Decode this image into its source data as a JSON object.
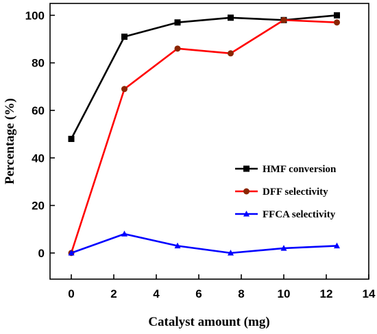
{
  "chart_data": {
    "type": "line",
    "xlabel": "Catalyst amount (mg)",
    "ylabel": "Percentage (%)",
    "xlim": [
      -1,
      14
    ],
    "ylim": [
      -11,
      105
    ],
    "xticks": [
      0,
      2,
      4,
      6,
      8,
      10,
      12,
      14
    ],
    "yticks": [
      0,
      20,
      40,
      60,
      80,
      100
    ],
    "grid": false,
    "legend_position": "right-middle",
    "series": [
      {
        "name": "HMF conversion",
        "color": "#000000",
        "marker": "square",
        "x": [
          0,
          2.5,
          5,
          7.5,
          10,
          12.5
        ],
        "y": [
          48,
          91,
          97,
          99,
          98,
          100
        ]
      },
      {
        "name": "DFF selectivity",
        "color": "#ff0000",
        "marker": "circle",
        "marker_color": "#8b2500",
        "x": [
          0,
          2.5,
          5,
          7.5,
          10,
          12.5
        ],
        "y": [
          0,
          69,
          86,
          84,
          98,
          97
        ]
      },
      {
        "name": "FFCA selectivity",
        "color": "#0000ff",
        "marker": "triangle",
        "x": [
          0,
          2.5,
          5,
          7.5,
          10,
          12.5
        ],
        "y": [
          0,
          8,
          3,
          0,
          2,
          3
        ]
      }
    ]
  }
}
